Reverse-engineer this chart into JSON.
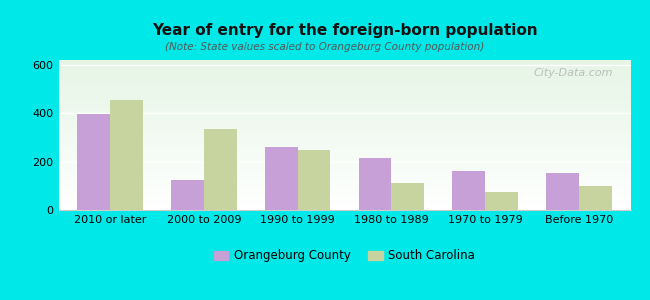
{
  "title": "Year of entry for the foreign-born population",
  "subtitle": "(Note: State values scaled to Orangeburg County population)",
  "categories": [
    "2010 or later",
    "2000 to 2009",
    "1990 to 1999",
    "1980 to 1989",
    "1970 to 1979",
    "Before 1970"
  ],
  "orangeburg": [
    395,
    125,
    260,
    215,
    162,
    155
  ],
  "south_carolina": [
    455,
    335,
    250,
    110,
    75,
    100
  ],
  "orangeburg_color": "#c8a0d8",
  "sc_color": "#c8d4a0",
  "ylim": [
    0,
    620
  ],
  "yticks": [
    0,
    200,
    400,
    600
  ],
  "background_color": "#00e8e8",
  "bar_width": 0.35,
  "legend_labels": [
    "Orangeburg County",
    "South Carolina"
  ],
  "watermark": "City-Data.com",
  "title_fontsize": 11,
  "subtitle_fontsize": 7.5,
  "tick_fontsize": 8,
  "legend_fontsize": 8.5
}
